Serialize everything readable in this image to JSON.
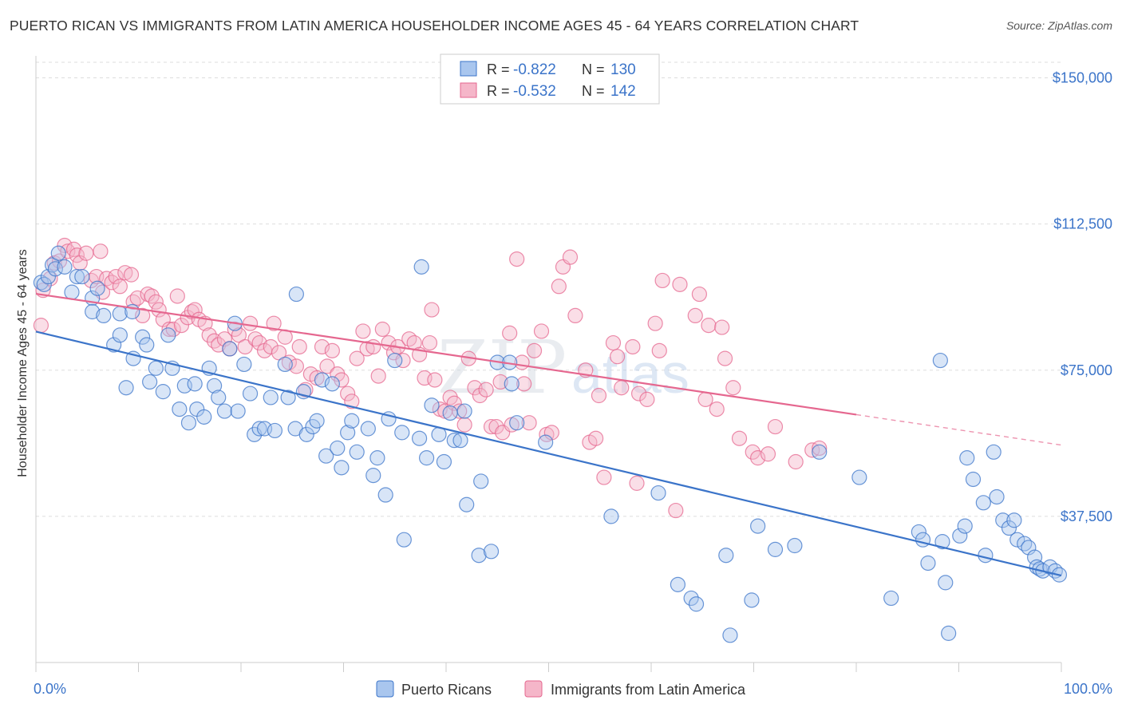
{
  "title": "PUERTO RICAN VS IMMIGRANTS FROM LATIN AMERICA HOUSEHOLDER INCOME AGES 45 - 64 YEARS CORRELATION CHART",
  "source": "Source: ZipAtlas.com",
  "watermark": {
    "zip": "ZIP",
    "atlas": "atlas"
  },
  "colors": {
    "blue": "#3b74c9",
    "blue_fill": "#a9c6ee",
    "pink": "#e5678f",
    "pink_fill": "#f5b6c9",
    "grid": "#dddddd"
  },
  "legend_top": {
    "rows": [
      {
        "r_label": "R = ",
        "r_value": "-0.822",
        "n_label": "N = ",
        "n_value": "130"
      },
      {
        "r_label": "R = ",
        "r_value": "-0.532",
        "n_label": "N = ",
        "n_value": "142"
      }
    ]
  },
  "legend_bottom": [
    "Puerto Ricans",
    "Immigrants from Latin America"
  ],
  "chart_data": {
    "type": "scatter",
    "title": "PUERTO RICAN VS IMMIGRANTS FROM LATIN AMERICA HOUSEHOLDER INCOME AGES 45 - 64 YEARS CORRELATION CHART",
    "xlabel": "",
    "ylabel": "Householder Income Ages 45 - 64 years",
    "xlim": [
      0,
      100
    ],
    "ylim": [
      0,
      154000
    ],
    "x_tick_labels": [
      "0.0%",
      "100.0%"
    ],
    "y_ticks": [
      37500,
      75000,
      112500,
      150000
    ],
    "y_tick_labels": [
      "$37,500",
      "$75,000",
      "$112,500",
      "$150,000"
    ],
    "grid": true,
    "legend": "top-center",
    "series": [
      {
        "name": "Puerto Ricans",
        "color": "#3b74c9",
        "trend": {
          "x": [
            0,
            100
          ],
          "y": [
            84900,
            22300
          ]
        },
        "points": [
          [
            0.5,
            97500
          ],
          [
            0.8,
            97000
          ],
          [
            1.2,
            99000
          ],
          [
            1.6,
            102000
          ],
          [
            1.9,
            101000
          ],
          [
            2.2,
            105000
          ],
          [
            2.8,
            101500
          ],
          [
            3.5,
            95000
          ],
          [
            4,
            99000
          ],
          [
            4.5,
            99000
          ],
          [
            5.5,
            93500
          ],
          [
            5.5,
            90000
          ],
          [
            6,
            96000
          ],
          [
            6.6,
            89000
          ],
          [
            7.6,
            81500
          ],
          [
            8.2,
            89500
          ],
          [
            8.2,
            84000
          ],
          [
            8.8,
            70500
          ],
          [
            9.4,
            90000
          ],
          [
            9.5,
            78000
          ],
          [
            10.4,
            83500
          ],
          [
            10.8,
            81500
          ],
          [
            11.1,
            72000
          ],
          [
            11.7,
            75500
          ],
          [
            12.4,
            69500
          ],
          [
            12.9,
            84000
          ],
          [
            13.3,
            75500
          ],
          [
            14,
            65000
          ],
          [
            14.5,
            71000
          ],
          [
            14.9,
            61500
          ],
          [
            15.5,
            71500
          ],
          [
            15.7,
            65000
          ],
          [
            16.4,
            63000
          ],
          [
            16.9,
            75500
          ],
          [
            17.4,
            71000
          ],
          [
            17.8,
            68000
          ],
          [
            18.4,
            64500
          ],
          [
            18.9,
            80500
          ],
          [
            19.4,
            87000
          ],
          [
            19.7,
            64500
          ],
          [
            20.3,
            76500
          ],
          [
            20.9,
            69000
          ],
          [
            21.3,
            58500
          ],
          [
            21.8,
            60000
          ],
          [
            22.3,
            60000
          ],
          [
            22.9,
            68000
          ],
          [
            23.3,
            59500
          ],
          [
            24.3,
            76500
          ],
          [
            24.6,
            68000
          ],
          [
            25.3,
            60000
          ],
          [
            25.4,
            94500
          ],
          [
            26.1,
            69500
          ],
          [
            26.4,
            58500
          ],
          [
            27,
            60500
          ],
          [
            27.4,
            62000
          ],
          [
            27.9,
            72500
          ],
          [
            28.3,
            53000
          ],
          [
            28.9,
            71500
          ],
          [
            29.4,
            55000
          ],
          [
            29.8,
            50000
          ],
          [
            30.4,
            59000
          ],
          [
            30.8,
            62000
          ],
          [
            31.3,
            54000
          ],
          [
            32.4,
            60000
          ],
          [
            32.9,
            48000
          ],
          [
            33.3,
            52500
          ],
          [
            34.1,
            43000
          ],
          [
            34.4,
            62500
          ],
          [
            35,
            77500
          ],
          [
            35.7,
            59000
          ],
          [
            35.9,
            31500
          ],
          [
            37.4,
            57500
          ],
          [
            37.6,
            101500
          ],
          [
            38.1,
            52500
          ],
          [
            38.6,
            66000
          ],
          [
            39.3,
            58500
          ],
          [
            39.8,
            51500
          ],
          [
            40.4,
            64000
          ],
          [
            40.8,
            57000
          ],
          [
            41.4,
            57000
          ],
          [
            41.8,
            64500
          ],
          [
            42,
            40500
          ],
          [
            43.2,
            27500
          ],
          [
            43.4,
            46500
          ],
          [
            44.4,
            28500
          ],
          [
            45,
            77000
          ],
          [
            46.2,
            77000
          ],
          [
            46.4,
            71500
          ],
          [
            46.9,
            61500
          ],
          [
            49.7,
            56500
          ],
          [
            56.1,
            37500
          ],
          [
            60.7,
            43500
          ],
          [
            62.6,
            20000
          ],
          [
            63.9,
            16500
          ],
          [
            64.4,
            15000
          ],
          [
            67.3,
            27500
          ],
          [
            67.7,
            7000
          ],
          [
            69.8,
            16000
          ],
          [
            70.4,
            35000
          ],
          [
            72.1,
            29000
          ],
          [
            74,
            30000
          ],
          [
            76.4,
            54000
          ],
          [
            80.3,
            47500
          ],
          [
            83.4,
            16500
          ],
          [
            86.1,
            33500
          ],
          [
            86.5,
            31500
          ],
          [
            87,
            25500
          ],
          [
            88.2,
            77500
          ],
          [
            88.4,
            31000
          ],
          [
            88.7,
            20500
          ],
          [
            89,
            7500
          ],
          [
            90.1,
            32500
          ],
          [
            90.6,
            35000
          ],
          [
            90.8,
            52500
          ],
          [
            91.4,
            47000
          ],
          [
            92.4,
            41000
          ],
          [
            92.6,
            27500
          ],
          [
            93.4,
            54000
          ],
          [
            93.7,
            42500
          ],
          [
            94.3,
            36500
          ],
          [
            94.9,
            34500
          ],
          [
            95.4,
            36500
          ],
          [
            95.7,
            31500
          ],
          [
            96.4,
            30500
          ],
          [
            96.8,
            29500
          ],
          [
            97.4,
            27000
          ],
          [
            97.6,
            24500
          ],
          [
            97.9,
            24000
          ],
          [
            98.2,
            23500
          ],
          [
            98.9,
            24500
          ],
          [
            99.4,
            23500
          ],
          [
            99.8,
            22500
          ]
        ]
      },
      {
        "name": "Immigrants from Latin America",
        "color": "#e5678f",
        "trend": {
          "x": [
            0,
            80
          ],
          "y": [
            94600,
            63600
          ]
        },
        "trend_dashed": {
          "x": [
            80,
            100
          ],
          "y": [
            63600,
            55800
          ]
        },
        "points": [
          [
            0.5,
            86500
          ],
          [
            0.7,
            95500
          ],
          [
            1.4,
            98500
          ],
          [
            1.8,
            102500
          ],
          [
            2.3,
            103000
          ],
          [
            2.8,
            107000
          ],
          [
            3.1,
            105500
          ],
          [
            3.7,
            106000
          ],
          [
            4,
            104500
          ],
          [
            4.3,
            102500
          ],
          [
            4.9,
            105000
          ],
          [
            5.4,
            98000
          ],
          [
            5.9,
            99000
          ],
          [
            6.3,
            105500
          ],
          [
            6.5,
            95000
          ],
          [
            6.9,
            98500
          ],
          [
            7.4,
            97500
          ],
          [
            7.8,
            99000
          ],
          [
            8.2,
            96500
          ],
          [
            8.7,
            100000
          ],
          [
            9.3,
            99500
          ],
          [
            9.5,
            92500
          ],
          [
            9.9,
            93500
          ],
          [
            10.4,
            89000
          ],
          [
            10.9,
            94500
          ],
          [
            11.3,
            94000
          ],
          [
            11.7,
            92500
          ],
          [
            12,
            90500
          ],
          [
            12.4,
            88000
          ],
          [
            13,
            85500
          ],
          [
            13.4,
            85500
          ],
          [
            13.8,
            94000
          ],
          [
            14.2,
            86500
          ],
          [
            14.8,
            88500
          ],
          [
            15.2,
            90000
          ],
          [
            15.5,
            90500
          ],
          [
            15.9,
            88000
          ],
          [
            16.5,
            87000
          ],
          [
            16.9,
            84000
          ],
          [
            17.4,
            82500
          ],
          [
            17.8,
            81500
          ],
          [
            18.4,
            83000
          ],
          [
            18.9,
            80500
          ],
          [
            19.4,
            85500
          ],
          [
            19.8,
            84000
          ],
          [
            20.4,
            81000
          ],
          [
            20.9,
            87000
          ],
          [
            21.4,
            83000
          ],
          [
            21.8,
            82000
          ],
          [
            22.3,
            80000
          ],
          [
            22.9,
            81000
          ],
          [
            23.2,
            87000
          ],
          [
            23.7,
            79500
          ],
          [
            24.3,
            83500
          ],
          [
            24.7,
            77000
          ],
          [
            25.4,
            76000
          ],
          [
            25.7,
            81000
          ],
          [
            26.3,
            70000
          ],
          [
            26.8,
            74000
          ],
          [
            27.4,
            73000
          ],
          [
            27.9,
            81000
          ],
          [
            28.4,
            76000
          ],
          [
            28.9,
            80000
          ],
          [
            29.4,
            74000
          ],
          [
            29.8,
            72500
          ],
          [
            30.4,
            69000
          ],
          [
            30.8,
            67000
          ],
          [
            31.3,
            78000
          ],
          [
            31.9,
            85000
          ],
          [
            32.3,
            80500
          ],
          [
            32.9,
            81000
          ],
          [
            33.4,
            73500
          ],
          [
            33.8,
            85500
          ],
          [
            34.4,
            82000
          ],
          [
            34.9,
            79500
          ],
          [
            35.3,
            81000
          ],
          [
            35.8,
            77500
          ],
          [
            36.4,
            83000
          ],
          [
            36.9,
            82000
          ],
          [
            37.4,
            79000
          ],
          [
            37.9,
            73000
          ],
          [
            38.4,
            82000
          ],
          [
            38.6,
            90500
          ],
          [
            38.9,
            72500
          ],
          [
            39.4,
            65000
          ],
          [
            39.9,
            64500
          ],
          [
            40.4,
            68000
          ],
          [
            40.8,
            66500
          ],
          [
            41.3,
            64500
          ],
          [
            41.8,
            61000
          ],
          [
            42.2,
            78000
          ],
          [
            42.8,
            70500
          ],
          [
            43.3,
            68500
          ],
          [
            43.9,
            70000
          ],
          [
            44.4,
            60500
          ],
          [
            44.9,
            60500
          ],
          [
            45.3,
            72000
          ],
          [
            45.5,
            59000
          ],
          [
            46.2,
            84500
          ],
          [
            46.4,
            61000
          ],
          [
            46.9,
            103500
          ],
          [
            47.4,
            77000
          ],
          [
            47.6,
            71500
          ],
          [
            48.1,
            61500
          ],
          [
            48.6,
            80000
          ],
          [
            49.3,
            85000
          ],
          [
            49.8,
            58500
          ],
          [
            50.3,
            59000
          ],
          [
            51,
            96500
          ],
          [
            51.4,
            101500
          ],
          [
            52.1,
            104000
          ],
          [
            52.6,
            89000
          ],
          [
            53.6,
            75000
          ],
          [
            54,
            56500
          ],
          [
            54.6,
            57500
          ],
          [
            54.9,
            68500
          ],
          [
            55.4,
            47500
          ],
          [
            56.3,
            82000
          ],
          [
            56.7,
            78500
          ],
          [
            57.1,
            70500
          ],
          [
            58.2,
            81000
          ],
          [
            58.6,
            46000
          ],
          [
            58.8,
            69000
          ],
          [
            59.6,
            67500
          ],
          [
            60.4,
            87000
          ],
          [
            60.8,
            80000
          ],
          [
            61.1,
            98000
          ],
          [
            62.4,
            39000
          ],
          [
            62.8,
            97000
          ],
          [
            64.3,
            89000
          ],
          [
            64.7,
            94500
          ],
          [
            65.3,
            67500
          ],
          [
            65.6,
            86500
          ],
          [
            66.4,
            65000
          ],
          [
            66.9,
            86000
          ],
          [
            67.2,
            78000
          ],
          [
            68,
            70500
          ],
          [
            68.6,
            57500
          ],
          [
            69.9,
            54000
          ],
          [
            70.4,
            52500
          ],
          [
            71.4,
            53500
          ],
          [
            72.1,
            60500
          ],
          [
            74.1,
            51500
          ],
          [
            75.7,
            54500
          ],
          [
            76.4,
            55000
          ]
        ]
      }
    ]
  }
}
